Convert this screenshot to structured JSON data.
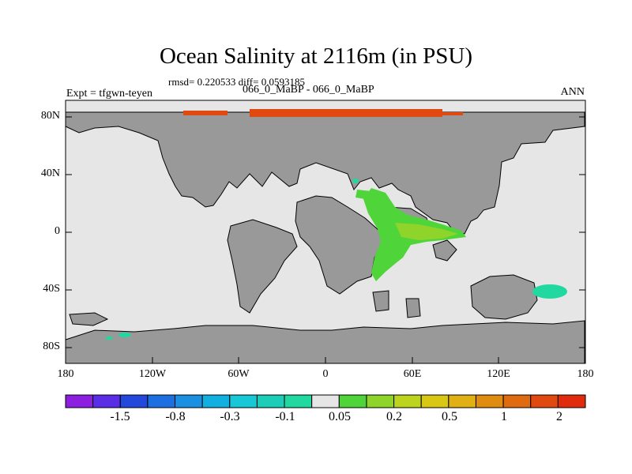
{
  "title": "Ocean Salinity at 2116m (in PSU)",
  "stats": "rmsd= 0.220533 diff= 0.0593185",
  "experiment_diff": "066_0_MaBP - 066_0_MaBP",
  "experiment": "Expt = tfgwn-teyen",
  "season": "ANN",
  "lat_labels": [
    "80N",
    "40N",
    "0",
    "40S",
    "80S"
  ],
  "lon_labels": [
    "180",
    "120W",
    "60W",
    "0",
    "60E",
    "120E",
    "180"
  ],
  "colorbar": {
    "colors": [
      "#8c1fe0",
      "#5a2ee6",
      "#2447dc",
      "#1c6fe0",
      "#1b90e0",
      "#12b0e0",
      "#17c9d6",
      "#1ccdb8",
      "#20d8a0",
      "#e6e6e6",
      "#4fd43a",
      "#8ed42a",
      "#bcd41e",
      "#d8c814",
      "#e0b014",
      "#e08c10",
      "#e06a10",
      "#e04a10",
      "#e02c0c"
    ],
    "labels": [
      "-1.5",
      "-0.8",
      "-0.3",
      "-0.1",
      "0.05",
      "0.2",
      "0.5",
      "1",
      "2"
    ]
  },
  "colors": {
    "land": "#999999",
    "ocean": "#e6e6e6",
    "coast": "#000000"
  }
}
